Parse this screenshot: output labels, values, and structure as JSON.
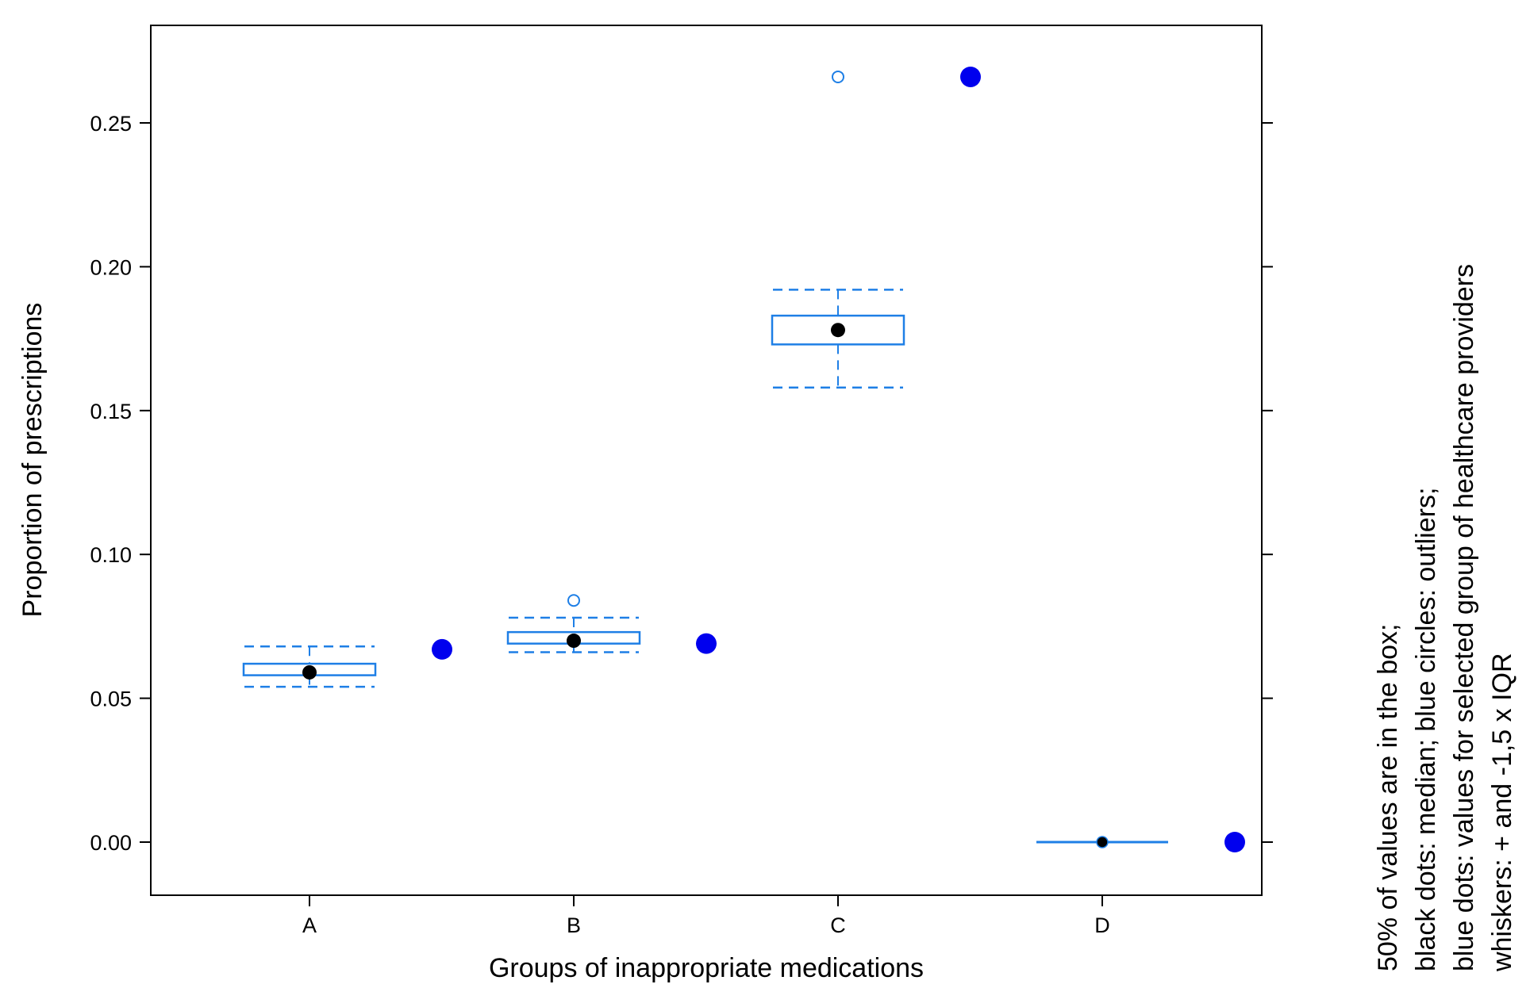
{
  "chart_data": {
    "type": "boxplot",
    "title": "",
    "xlabel": "Groups of inappropriate medications",
    "ylabel": "Proportion of prescriptions",
    "ylim": [
      -0.018,
      0.285
    ],
    "yticks": [
      0.0,
      0.05,
      0.1,
      0.15,
      0.2,
      0.25
    ],
    "ytick_labels": [
      "0.00",
      "0.05",
      "0.10",
      "0.15",
      "0.20",
      "0.25"
    ],
    "categories": [
      "A",
      "B",
      "C",
      "D"
    ],
    "boxes": [
      {
        "category": "A",
        "q1": 0.058,
        "median": 0.059,
        "q3": 0.062,
        "whisker_low": 0.054,
        "whisker_high": 0.068,
        "outliers": [],
        "selected": 0.067
      },
      {
        "category": "B",
        "q1": 0.069,
        "median": 0.07,
        "q3": 0.073,
        "whisker_low": 0.066,
        "whisker_high": 0.078,
        "outliers": [
          0.084
        ],
        "selected": 0.069
      },
      {
        "category": "C",
        "q1": 0.173,
        "median": 0.178,
        "q3": 0.183,
        "whisker_low": 0.158,
        "whisker_high": 0.192,
        "outliers": [
          0.266
        ],
        "selected": 0.266
      },
      {
        "category": "D",
        "q1": 0.0,
        "median": 0.0,
        "q3": 0.0,
        "whisker_low": 0.0,
        "whisker_high": 0.0,
        "outliers": [],
        "selected": 0.0
      }
    ],
    "legend_lines": [
      "50% of values are in the box;",
      "black dots: median; blue circles: outliers;",
      "blue dots: values for selected group of healthcare providers",
      "whiskers: + and -1,5 x IQR"
    ],
    "colors": {
      "box": "#1e7fe6",
      "median": "#000000",
      "selected": "#0000ee"
    },
    "grid": false,
    "legend_position": "right-vertical"
  }
}
